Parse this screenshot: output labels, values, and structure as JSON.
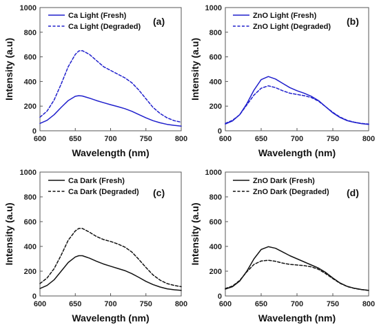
{
  "chart_data": [
    {
      "type": "line",
      "panel_label": "(a)",
      "xlabel": "Wavelength (nm)",
      "ylabel": "Intensity (a.u)",
      "xlim": [
        600,
        800
      ],
      "ylim": [
        0,
        1000
      ],
      "xticks": [
        600,
        650,
        700,
        750,
        800
      ],
      "yticks": [
        0,
        200,
        400,
        600,
        800,
        1000
      ],
      "grid": false,
      "legend_position": "top-left",
      "color": "#1f1fcc",
      "x": [
        600,
        610,
        620,
        630,
        640,
        650,
        655,
        660,
        670,
        680,
        690,
        700,
        710,
        720,
        730,
        740,
        750,
        760,
        770,
        780,
        790,
        800
      ],
      "series": [
        {
          "name": "Ca Light (Fresh)",
          "style": "solid",
          "values": [
            60,
            85,
            130,
            190,
            245,
            280,
            285,
            282,
            265,
            245,
            228,
            212,
            196,
            180,
            158,
            132,
            105,
            82,
            65,
            52,
            44,
            38
          ]
        },
        {
          "name": "Ca Light (Degraded)",
          "style": "dashed",
          "values": [
            110,
            160,
            250,
            380,
            520,
            620,
            648,
            650,
            620,
            570,
            520,
            490,
            460,
            430,
            390,
            330,
            260,
            190,
            140,
            105,
            82,
            70
          ]
        }
      ]
    },
    {
      "type": "line",
      "panel_label": "(b)",
      "xlabel": "Wavelength (nm)",
      "ylabel": "Intensity (a.u)",
      "xlim": [
        600,
        800
      ],
      "ylim": [
        0,
        1000
      ],
      "xticks": [
        600,
        650,
        700,
        750,
        800
      ],
      "yticks": [
        0,
        200,
        400,
        600,
        800,
        1000
      ],
      "grid": false,
      "legend_position": "top-left",
      "color": "#1f1fcc",
      "x": [
        600,
        610,
        620,
        630,
        640,
        650,
        660,
        670,
        680,
        690,
        700,
        710,
        720,
        730,
        740,
        750,
        760,
        770,
        780,
        790,
        800
      ],
      "series": [
        {
          "name": "ZnO Light (Fresh)",
          "style": "solid",
          "values": [
            55,
            80,
            130,
            220,
            330,
            415,
            440,
            420,
            385,
            350,
            325,
            305,
            280,
            245,
            195,
            145,
            108,
            82,
            68,
            58,
            52
          ]
        },
        {
          "name": "ZnO Light (Degraded)",
          "style": "dashed",
          "values": [
            60,
            85,
            130,
            210,
            290,
            345,
            365,
            350,
            325,
            305,
            295,
            285,
            270,
            240,
            195,
            150,
            112,
            85,
            70,
            60,
            54
          ]
        }
      ]
    },
    {
      "type": "line",
      "panel_label": "(c)",
      "xlabel": "Wavelength (nm)",
      "ylabel": "Intensity (a.u)",
      "xlim": [
        600,
        800
      ],
      "ylim": [
        0,
        1000
      ],
      "xticks": [
        600,
        650,
        700,
        750,
        800
      ],
      "yticks": [
        0,
        200,
        400,
        600,
        800,
        1000
      ],
      "grid": false,
      "legend_position": "top-left",
      "color": "#111111",
      "x": [
        600,
        610,
        620,
        630,
        640,
        650,
        655,
        660,
        670,
        680,
        690,
        700,
        710,
        720,
        730,
        740,
        750,
        760,
        770,
        780,
        790,
        800
      ],
      "series": [
        {
          "name": "Ca Dark (Fresh)",
          "style": "solid",
          "values": [
            60,
            85,
            130,
            200,
            270,
            315,
            325,
            325,
            305,
            280,
            258,
            240,
            222,
            205,
            180,
            150,
            118,
            92,
            72,
            58,
            50,
            45
          ]
        },
        {
          "name": "Ca Dark (Degraded)",
          "style": "dashed",
          "values": [
            100,
            145,
            220,
            330,
            450,
            525,
            545,
            545,
            515,
            480,
            455,
            440,
            420,
            395,
            355,
            295,
            230,
            170,
            128,
            100,
            85,
            75
          ]
        }
      ]
    },
    {
      "type": "line",
      "panel_label": "(d)",
      "xlabel": "Wavelength (nm)",
      "ylabel": "Intensity (a.u)",
      "xlim": [
        600,
        800
      ],
      "ylim": [
        0,
        1000
      ],
      "xticks": [
        600,
        650,
        700,
        750,
        800
      ],
      "yticks": [
        0,
        200,
        400,
        600,
        800,
        1000
      ],
      "grid": false,
      "legend_position": "top-left",
      "color": "#111111",
      "x": [
        600,
        610,
        620,
        630,
        640,
        650,
        660,
        670,
        680,
        690,
        700,
        710,
        720,
        730,
        740,
        750,
        760,
        770,
        780,
        790,
        800
      ],
      "series": [
        {
          "name": "ZnO Dark (Fresh)",
          "style": "solid",
          "values": [
            55,
            75,
            120,
            200,
            300,
            375,
            398,
            385,
            355,
            325,
            300,
            275,
            250,
            225,
            190,
            145,
            105,
            78,
            62,
            52,
            45
          ]
        },
        {
          "name": "ZnO Dark (Degraded)",
          "style": "dashed",
          "values": [
            60,
            80,
            125,
            195,
            255,
            282,
            288,
            280,
            265,
            255,
            250,
            245,
            235,
            215,
            180,
            140,
            102,
            76,
            61,
            51,
            45
          ]
        }
      ]
    }
  ]
}
